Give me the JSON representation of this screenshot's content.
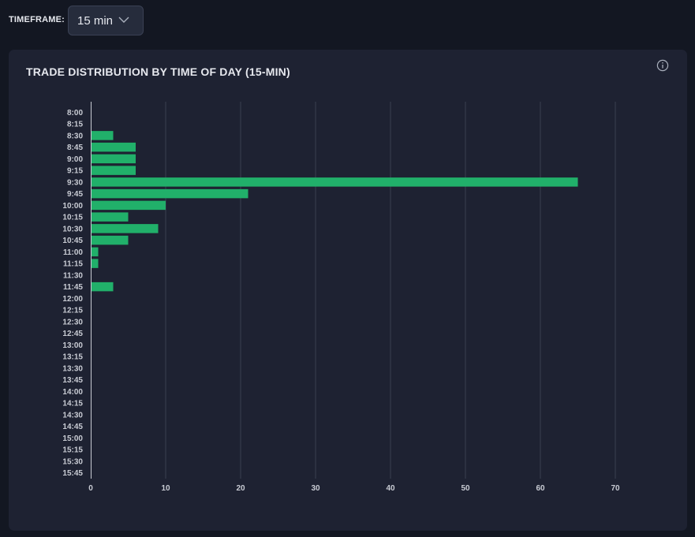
{
  "timeframe": {
    "label": "TIMEFRAME:",
    "selected": "15 min"
  },
  "card": {
    "title": "TRADE DISTRIBUTION BY TIME OF DAY (15-MIN)",
    "info_icon": "info-icon"
  },
  "colors": {
    "bar": "#21b06a",
    "grid": "#3a4050",
    "axis": "#c9ccd4",
    "background": "#1e2232"
  },
  "chart_data": {
    "type": "bar",
    "orientation": "horizontal",
    "title": "TRADE DISTRIBUTION BY TIME OF DAY (15-MIN)",
    "categories": [
      "8:00",
      "8:15",
      "8:30",
      "8:45",
      "9:00",
      "9:15",
      "9:30",
      "9:45",
      "10:00",
      "10:15",
      "10:30",
      "10:45",
      "11:00",
      "11:15",
      "11:30",
      "11:45",
      "12:00",
      "12:15",
      "12:30",
      "12:45",
      "13:00",
      "13:15",
      "13:30",
      "13:45",
      "14:00",
      "14:15",
      "14:30",
      "14:45",
      "15:00",
      "15:15",
      "15:30",
      "15:45"
    ],
    "values": [
      0,
      0,
      3,
      6,
      6,
      6,
      65,
      21,
      10,
      5,
      9,
      5,
      1,
      1,
      0,
      3,
      0,
      0,
      0,
      0,
      0,
      0,
      0,
      0,
      0,
      0,
      0,
      0,
      0,
      0,
      0,
      0
    ],
    "xlim": [
      0,
      70
    ],
    "xticks": [
      0,
      10,
      20,
      30,
      40,
      50,
      60,
      70
    ],
    "grid": true,
    "legend": "none"
  }
}
